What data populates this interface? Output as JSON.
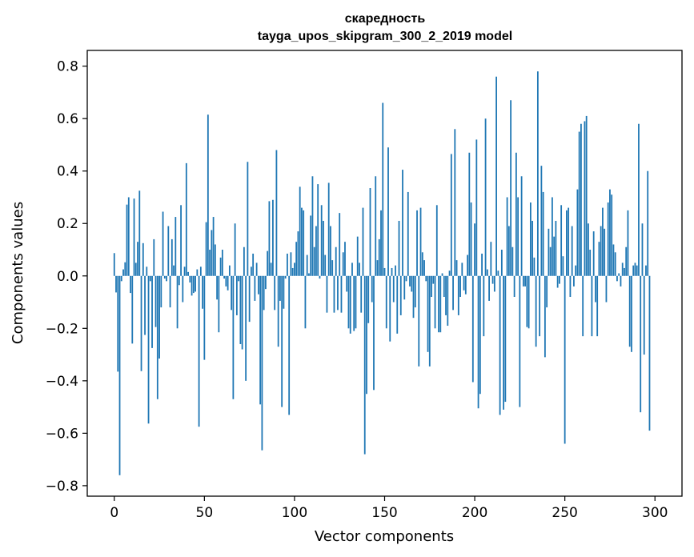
{
  "chart_data": {
    "type": "bar",
    "title": "скаредность",
    "subtitle": "tayga_upos_skipgram_300_2_2019 model",
    "xlabel": "Vector components",
    "ylabel": "Components values",
    "xlim": [
      -15,
      315
    ],
    "ylim": [
      -0.84,
      0.86
    ],
    "xticks": [
      0,
      50,
      100,
      150,
      200,
      250,
      300
    ],
    "yticks": [
      -0.8,
      -0.6,
      -0.4,
      -0.2,
      0.0,
      0.2,
      0.4,
      0.6,
      0.8
    ],
    "ytick_labels": [
      "−0.8",
      "−0.6",
      "−0.4",
      "−0.2",
      "0.0",
      "0.2",
      "0.4",
      "0.6",
      "0.8"
    ],
    "bar_color": "#1f77b4",
    "grid": false,
    "values": [
      0.087,
      -0.063,
      -0.365,
      -0.76,
      -0.02,
      0.025,
      0.052,
      0.272,
      0.3,
      -0.065,
      -0.258,
      0.295,
      0.05,
      0.13,
      0.325,
      -0.363,
      0.125,
      -0.225,
      0.035,
      -0.563,
      -0.02,
      -0.275,
      0.14,
      -0.195,
      -0.47,
      -0.315,
      -0.12,
      0.245,
      -0.01,
      -0.02,
      0.19,
      -0.12,
      0.14,
      0.04,
      0.225,
      -0.2,
      -0.035,
      0.27,
      -0.1,
      0.035,
      0.43,
      0.015,
      -0.025,
      -0.075,
      -0.065,
      -0.06,
      0.025,
      -0.575,
      0.035,
      -0.125,
      -0.32,
      0.205,
      0.615,
      0.1,
      0.175,
      0.225,
      0.12,
      -0.09,
      -0.215,
      0.07,
      0.1,
      -0.01,
      -0.04,
      -0.055,
      0.04,
      -0.13,
      -0.47,
      0.2,
      -0.15,
      -0.02,
      -0.26,
      -0.28,
      0.11,
      -0.4,
      0.435,
      -0.175,
      0.035,
      0.085,
      -0.095,
      0.05,
      -0.07,
      -0.49,
      -0.665,
      -0.13,
      -0.05,
      0.095,
      0.285,
      0.05,
      0.29,
      -0.13,
      0.48,
      -0.27,
      -0.095,
      -0.5,
      -0.125,
      -0.01,
      0.085,
      -0.53,
      0.09,
      0.03,
      0.05,
      0.13,
      0.17,
      0.34,
      0.26,
      0.25,
      -0.2,
      0.08,
      0.01,
      0.23,
      0.38,
      0.11,
      0.19,
      0.35,
      -0.01,
      0.27,
      0.21,
      0.08,
      -0.14,
      0.355,
      0.19,
      0.06,
      -0.14,
      0.11,
      -0.13,
      0.24,
      -0.14,
      0.09,
      0.13,
      -0.06,
      -0.2,
      -0.22,
      0.05,
      -0.21,
      -0.2,
      0.15,
      0.05,
      -0.14,
      0.26,
      -0.68,
      -0.45,
      -0.18,
      0.335,
      -0.1,
      -0.435,
      0.38,
      0.06,
      0.14,
      0.25,
      0.66,
      0.03,
      -0.2,
      0.49,
      -0.25,
      0.03,
      -0.1,
      0.04,
      -0.22,
      0.21,
      -0.15,
      0.405,
      -0.09,
      -0.02,
      0.32,
      -0.04,
      -0.06,
      -0.16,
      -0.12,
      0.25,
      -0.345,
      0.26,
      0.09,
      0.06,
      -0.02,
      -0.29,
      -0.345,
      -0.08,
      -0.03,
      -0.2,
      0.27,
      -0.215,
      -0.215,
      0.01,
      -0.08,
      -0.15,
      -0.19,
      0.02,
      0.465,
      -0.13,
      0.56,
      0.06,
      -0.15,
      -0.08,
      0.05,
      -0.055,
      -0.07,
      0.08,
      0.47,
      0.28,
      -0.405,
      0.2,
      0.52,
      -0.505,
      -0.45,
      0.085,
      -0.23,
      0.6,
      0.025,
      -0.095,
      0.13,
      -0.03,
      -0.06,
      0.76,
      0.02,
      -0.53,
      0.1,
      -0.51,
      -0.48,
      0.3,
      0.19,
      0.67,
      0.11,
      -0.08,
      0.47,
      0.3,
      -0.5,
      0.38,
      -0.04,
      -0.04,
      -0.195,
      -0.2,
      0.28,
      0.21,
      0.07,
      -0.27,
      0.78,
      -0.23,
      0.42,
      0.32,
      -0.31,
      -0.12,
      0.18,
      0.11,
      0.3,
      0.15,
      0.21,
      -0.045,
      -0.03,
      0.27,
      0.075,
      -0.64,
      0.25,
      0.26,
      -0.08,
      0.19,
      -0.04,
      0.04,
      0.33,
      0.55,
      0.58,
      -0.23,
      0.59,
      0.61,
      0.2,
      0.1,
      -0.23,
      0.17,
      -0.1,
      -0.23,
      0.13,
      0.19,
      0.26,
      0.18,
      -0.1,
      0.28,
      0.33,
      0.31,
      0.12,
      0.09,
      -0.02,
      0.01,
      -0.04,
      0.05,
      0.03,
      0.11,
      0.25,
      -0.27,
      -0.29,
      0.04,
      0.05,
      0.04,
      0.58,
      -0.52,
      0.2,
      -0.3,
      0.04,
      0.4,
      -0.59
    ]
  }
}
